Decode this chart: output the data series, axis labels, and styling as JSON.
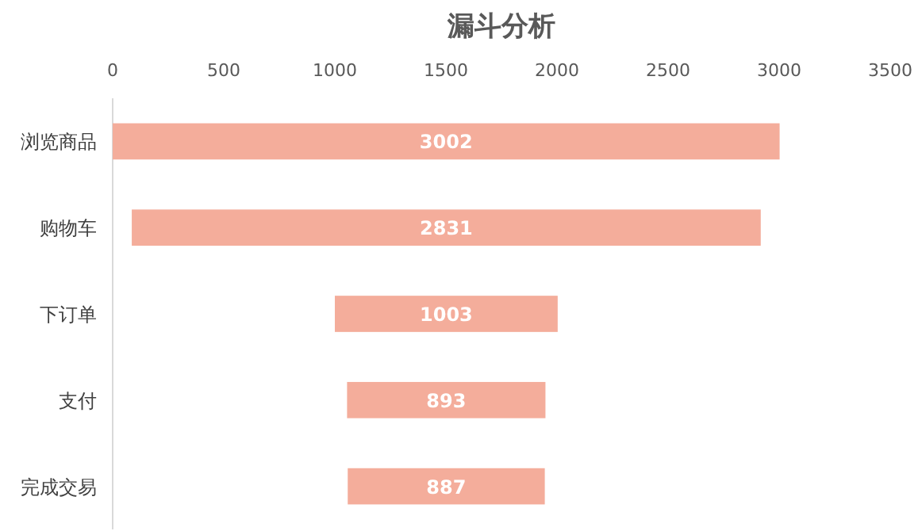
{
  "chart_data": {
    "type": "bar",
    "title": "漏斗分析",
    "orientation": "horizontal",
    "categories": [
      "浏览商品",
      "购物车",
      "下订单",
      "支付",
      "完成交易"
    ],
    "values": [
      3002,
      2831,
      1003,
      893,
      887
    ],
    "base": [
      0,
      86,
      1000,
      1055,
      1058
    ],
    "color": "#f4ad9b",
    "data_labels": true,
    "xlim": [
      0,
      3500
    ],
    "xticks": [
      0,
      500,
      1000,
      1500,
      2000,
      2500,
      3000,
      3500
    ]
  }
}
